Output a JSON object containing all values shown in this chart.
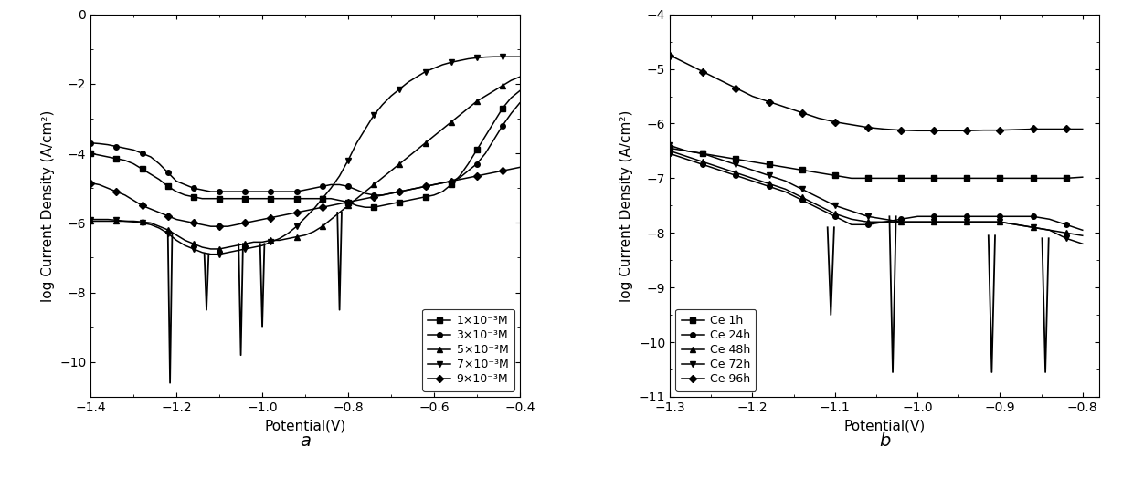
{
  "fig_width": 12.4,
  "fig_height": 5.24,
  "background_color": "#ffffff",
  "subplot_a": {
    "xlabel": "Potential(V)",
    "ylabel": "log Current Density (A/cm²)",
    "xlim": [
      -1.4,
      -0.4
    ],
    "ylim": [
      -11,
      0
    ],
    "xticks": [
      -1.4,
      -1.2,
      -1.0,
      -0.8,
      -0.6,
      -0.4
    ],
    "yticks": [
      0,
      -2,
      -4,
      -6,
      -8,
      -10
    ],
    "label": "a",
    "legend_labels": [
      "1×10⁻³M",
      "3×10⁻³M",
      "5×10⁻³M",
      "7×10⁻³M",
      "9×10⁻³M"
    ],
    "markers": [
      "s",
      "o",
      "^",
      "v",
      "D"
    ],
    "spikes_a": [
      {
        "x": -1.215,
        "ytop": -6.3,
        "ybot": -10.6
      },
      {
        "x": -1.13,
        "ytop": -6.9,
        "ybot": -8.5
      },
      {
        "x": -1.05,
        "ytop": -6.6,
        "ybot": -9.8
      },
      {
        "x": -1.0,
        "ytop": -6.6,
        "ybot": -9.0
      },
      {
        "x": -0.82,
        "ytop": -5.7,
        "ybot": -8.5
      }
    ],
    "series": [
      {
        "label": "1×10⁻³M",
        "marker": "s",
        "x": [
          -1.4,
          -1.38,
          -1.36,
          -1.34,
          -1.32,
          -1.3,
          -1.28,
          -1.26,
          -1.24,
          -1.22,
          -1.2,
          -1.18,
          -1.16,
          -1.14,
          -1.12,
          -1.1,
          -1.08,
          -1.06,
          -1.04,
          -1.02,
          -1.0,
          -0.98,
          -0.96,
          -0.94,
          -0.92,
          -0.9,
          -0.88,
          -0.86,
          -0.84,
          -0.82,
          -0.8,
          -0.78,
          -0.76,
          -0.74,
          -0.72,
          -0.7,
          -0.68,
          -0.66,
          -0.64,
          -0.62,
          -0.6,
          -0.58,
          -0.56,
          -0.54,
          -0.52,
          -0.5,
          -0.48,
          -0.46,
          -0.44,
          -0.42,
          -0.4
        ],
        "y": [
          -4.0,
          -4.05,
          -4.1,
          -4.15,
          -4.2,
          -4.3,
          -4.45,
          -4.6,
          -4.75,
          -4.95,
          -5.1,
          -5.2,
          -5.25,
          -5.3,
          -5.3,
          -5.3,
          -5.3,
          -5.3,
          -5.3,
          -5.3,
          -5.3,
          -5.3,
          -5.3,
          -5.3,
          -5.3,
          -5.3,
          -5.3,
          -5.3,
          -5.3,
          -5.35,
          -5.4,
          -5.5,
          -5.55,
          -5.55,
          -5.5,
          -5.45,
          -5.4,
          -5.35,
          -5.3,
          -5.25,
          -5.2,
          -5.1,
          -4.9,
          -4.65,
          -4.3,
          -3.9,
          -3.5,
          -3.1,
          -2.7,
          -2.4,
          -2.2
        ]
      },
      {
        "label": "3×10⁻³M",
        "marker": "o",
        "x": [
          -1.4,
          -1.38,
          -1.36,
          -1.34,
          -1.32,
          -1.3,
          -1.28,
          -1.26,
          -1.24,
          -1.22,
          -1.2,
          -1.18,
          -1.16,
          -1.14,
          -1.12,
          -1.1,
          -1.08,
          -1.06,
          -1.04,
          -1.02,
          -1.0,
          -0.98,
          -0.96,
          -0.94,
          -0.92,
          -0.9,
          -0.88,
          -0.86,
          -0.84,
          -0.82,
          -0.8,
          -0.78,
          -0.76,
          -0.74,
          -0.72,
          -0.7,
          -0.68,
          -0.66,
          -0.64,
          -0.62,
          -0.6,
          -0.58,
          -0.56,
          -0.54,
          -0.52,
          -0.5,
          -0.48,
          -0.46,
          -0.44,
          -0.42,
          -0.4
        ],
        "y": [
          -3.7,
          -3.72,
          -3.75,
          -3.8,
          -3.85,
          -3.9,
          -4.0,
          -4.1,
          -4.3,
          -4.55,
          -4.8,
          -4.9,
          -5.0,
          -5.05,
          -5.1,
          -5.1,
          -5.1,
          -5.1,
          -5.1,
          -5.1,
          -5.1,
          -5.1,
          -5.1,
          -5.1,
          -5.1,
          -5.05,
          -5.0,
          -4.95,
          -4.9,
          -4.9,
          -4.95,
          -5.05,
          -5.15,
          -5.2,
          -5.2,
          -5.15,
          -5.1,
          -5.05,
          -5.0,
          -4.95,
          -4.9,
          -4.85,
          -4.8,
          -4.7,
          -4.5,
          -4.3,
          -4.0,
          -3.6,
          -3.2,
          -2.85,
          -2.55
        ]
      },
      {
        "label": "5×10⁻³M",
        "marker": "^",
        "x": [
          -1.4,
          -1.38,
          -1.36,
          -1.34,
          -1.32,
          -1.3,
          -1.28,
          -1.26,
          -1.24,
          -1.22,
          -1.2,
          -1.18,
          -1.16,
          -1.14,
          -1.12,
          -1.1,
          -1.08,
          -1.06,
          -1.04,
          -1.02,
          -1.0,
          -0.98,
          -0.96,
          -0.94,
          -0.92,
          -0.9,
          -0.88,
          -0.86,
          -0.84,
          -0.82,
          -0.8,
          -0.78,
          -0.76,
          -0.74,
          -0.72,
          -0.7,
          -0.68,
          -0.66,
          -0.64,
          -0.62,
          -0.6,
          -0.58,
          -0.56,
          -0.54,
          -0.52,
          -0.5,
          -0.48,
          -0.46,
          -0.44,
          -0.42,
          -0.4
        ],
        "y": [
          -5.95,
          -5.95,
          -5.95,
          -5.95,
          -5.95,
          -5.95,
          -5.97,
          -6.0,
          -6.1,
          -6.2,
          -6.35,
          -6.5,
          -6.6,
          -6.7,
          -6.75,
          -6.75,
          -6.7,
          -6.65,
          -6.6,
          -6.55,
          -6.55,
          -6.5,
          -6.5,
          -6.45,
          -6.4,
          -6.35,
          -6.25,
          -6.1,
          -5.9,
          -5.7,
          -5.5,
          -5.3,
          -5.1,
          -4.9,
          -4.7,
          -4.5,
          -4.3,
          -4.1,
          -3.9,
          -3.7,
          -3.5,
          -3.3,
          -3.1,
          -2.9,
          -2.7,
          -2.5,
          -2.35,
          -2.2,
          -2.05,
          -1.9,
          -1.8
        ]
      },
      {
        "label": "7×10⁻³M",
        "marker": "v",
        "x": [
          -1.4,
          -1.38,
          -1.36,
          -1.34,
          -1.32,
          -1.3,
          -1.28,
          -1.26,
          -1.24,
          -1.22,
          -1.2,
          -1.18,
          -1.16,
          -1.14,
          -1.12,
          -1.1,
          -1.08,
          -1.06,
          -1.04,
          -1.02,
          -1.0,
          -0.98,
          -0.96,
          -0.94,
          -0.92,
          -0.9,
          -0.88,
          -0.86,
          -0.84,
          -0.82,
          -0.8,
          -0.78,
          -0.76,
          -0.74,
          -0.72,
          -0.7,
          -0.68,
          -0.66,
          -0.64,
          -0.62,
          -0.6,
          -0.58,
          -0.56,
          -0.54,
          -0.52,
          -0.5,
          -0.48,
          -0.46,
          -0.44,
          -0.42,
          -0.4
        ],
        "y": [
          -5.9,
          -5.9,
          -5.9,
          -5.92,
          -5.95,
          -5.97,
          -6.0,
          -6.05,
          -6.15,
          -6.3,
          -6.5,
          -6.65,
          -6.75,
          -6.85,
          -6.9,
          -6.9,
          -6.85,
          -6.8,
          -6.75,
          -6.7,
          -6.65,
          -6.55,
          -6.45,
          -6.3,
          -6.1,
          -5.85,
          -5.6,
          -5.3,
          -5.0,
          -4.65,
          -4.2,
          -3.7,
          -3.3,
          -2.9,
          -2.6,
          -2.35,
          -2.15,
          -1.95,
          -1.8,
          -1.65,
          -1.55,
          -1.45,
          -1.38,
          -1.33,
          -1.28,
          -1.25,
          -1.23,
          -1.22,
          -1.22,
          -1.22,
          -1.22
        ]
      },
      {
        "label": "9×10⁻³M",
        "marker": "D",
        "x": [
          -1.4,
          -1.38,
          -1.36,
          -1.34,
          -1.32,
          -1.3,
          -1.28,
          -1.26,
          -1.24,
          -1.22,
          -1.2,
          -1.18,
          -1.16,
          -1.14,
          -1.12,
          -1.1,
          -1.08,
          -1.06,
          -1.04,
          -1.02,
          -1.0,
          -0.98,
          -0.96,
          -0.94,
          -0.92,
          -0.9,
          -0.88,
          -0.86,
          -0.84,
          -0.82,
          -0.8,
          -0.78,
          -0.76,
          -0.74,
          -0.72,
          -0.7,
          -0.68,
          -0.66,
          -0.64,
          -0.62,
          -0.6,
          -0.58,
          -0.56,
          -0.54,
          -0.52,
          -0.5,
          -0.48,
          -0.46,
          -0.44,
          -0.42,
          -0.4
        ],
        "y": [
          -4.85,
          -4.9,
          -5.0,
          -5.1,
          -5.2,
          -5.35,
          -5.5,
          -5.6,
          -5.7,
          -5.8,
          -5.9,
          -5.95,
          -6.0,
          -6.05,
          -6.1,
          -6.1,
          -6.1,
          -6.05,
          -6.0,
          -5.95,
          -5.9,
          -5.85,
          -5.8,
          -5.75,
          -5.7,
          -5.65,
          -5.6,
          -5.55,
          -5.5,
          -5.45,
          -5.4,
          -5.35,
          -5.3,
          -5.25,
          -5.2,
          -5.15,
          -5.1,
          -5.05,
          -5.0,
          -4.95,
          -4.9,
          -4.85,
          -4.8,
          -4.75,
          -4.7,
          -4.65,
          -4.6,
          -4.55,
          -4.5,
          -4.45,
          -4.4
        ]
      }
    ]
  },
  "subplot_b": {
    "xlabel": "Potential(V)",
    "ylabel": "log Current Density (A/cm²)",
    "xlim": [
      -1.3,
      -0.78
    ],
    "ylim": [
      -11,
      -4
    ],
    "xticks": [
      -1.3,
      -1.2,
      -1.1,
      -1.0,
      -0.9,
      -0.8
    ],
    "yticks": [
      -4,
      -5,
      -6,
      -7,
      -8,
      -9,
      -10,
      -11
    ],
    "label": "b",
    "legend_labels": [
      "Ce 1h",
      "Ce 24h",
      "Ce 48h",
      "Ce 72h",
      "Ce 96h"
    ],
    "markers": [
      "s",
      "o",
      "^",
      "v",
      "D"
    ],
    "spikes_b": [
      {
        "x": -1.105,
        "ytop": -7.9,
        "ybot": -9.5
      },
      {
        "x": -1.03,
        "ytop": -7.7,
        "ybot": -10.55
      },
      {
        "x": -0.91,
        "ytop": -8.05,
        "ybot": -10.55
      },
      {
        "x": -0.845,
        "ytop": -8.1,
        "ybot": -10.55
      }
    ],
    "series": [
      {
        "label": "Ce 1h",
        "marker": "s",
        "x": [
          -1.3,
          -1.28,
          -1.26,
          -1.24,
          -1.22,
          -1.2,
          -1.18,
          -1.16,
          -1.14,
          -1.12,
          -1.1,
          -1.08,
          -1.06,
          -1.04,
          -1.02,
          -1.0,
          -0.98,
          -0.96,
          -0.94,
          -0.92,
          -0.9,
          -0.88,
          -0.86,
          -0.84,
          -0.82,
          -0.8
        ],
        "y": [
          -6.45,
          -6.5,
          -6.55,
          -6.6,
          -6.65,
          -6.7,
          -6.75,
          -6.8,
          -6.85,
          -6.9,
          -6.95,
          -7.0,
          -7.0,
          -7.0,
          -7.0,
          -7.0,
          -7.0,
          -7.0,
          -7.0,
          -7.0,
          -7.0,
          -7.0,
          -7.0,
          -7.0,
          -7.0,
          -6.98
        ]
      },
      {
        "label": "Ce 24h",
        "marker": "o",
        "x": [
          -1.3,
          -1.28,
          -1.26,
          -1.24,
          -1.22,
          -1.2,
          -1.18,
          -1.16,
          -1.14,
          -1.12,
          -1.1,
          -1.08,
          -1.06,
          -1.04,
          -1.02,
          -1.0,
          -0.98,
          -0.96,
          -0.94,
          -0.92,
          -0.9,
          -0.88,
          -0.86,
          -0.84,
          -0.82,
          -0.8
        ],
        "y": [
          -6.55,
          -6.65,
          -6.75,
          -6.85,
          -6.95,
          -7.05,
          -7.15,
          -7.25,
          -7.4,
          -7.55,
          -7.7,
          -7.85,
          -7.85,
          -7.8,
          -7.75,
          -7.7,
          -7.7,
          -7.7,
          -7.7,
          -7.7,
          -7.7,
          -7.7,
          -7.7,
          -7.75,
          -7.85,
          -7.95
        ]
      },
      {
        "label": "Ce 48h",
        "marker": "^",
        "x": [
          -1.3,
          -1.28,
          -1.26,
          -1.24,
          -1.22,
          -1.2,
          -1.18,
          -1.16,
          -1.14,
          -1.12,
          -1.1,
          -1.08,
          -1.06,
          -1.04,
          -1.02,
          -1.0,
          -0.98,
          -0.96,
          -0.94,
          -0.92,
          -0.9,
          -0.88,
          -0.86,
          -0.84,
          -0.82,
          -0.8
        ],
        "y": [
          -6.5,
          -6.6,
          -6.7,
          -6.8,
          -6.9,
          -7.0,
          -7.1,
          -7.2,
          -7.35,
          -7.5,
          -7.65,
          -7.75,
          -7.8,
          -7.8,
          -7.8,
          -7.8,
          -7.8,
          -7.8,
          -7.8,
          -7.8,
          -7.8,
          -7.85,
          -7.9,
          -7.95,
          -8.0,
          -8.05
        ]
      },
      {
        "label": "Ce 72h",
        "marker": "v",
        "x": [
          -1.3,
          -1.28,
          -1.26,
          -1.24,
          -1.22,
          -1.2,
          -1.18,
          -1.16,
          -1.14,
          -1.12,
          -1.1,
          -1.08,
          -1.06,
          -1.04,
          -1.02,
          -1.0,
          -0.98,
          -0.96,
          -0.94,
          -0.92,
          -0.9,
          -0.88,
          -0.86,
          -0.84,
          -0.82,
          -0.8
        ],
        "y": [
          -6.4,
          -6.5,
          -6.55,
          -6.65,
          -6.75,
          -6.85,
          -6.95,
          -7.05,
          -7.2,
          -7.35,
          -7.5,
          -7.6,
          -7.7,
          -7.75,
          -7.8,
          -7.8,
          -7.8,
          -7.8,
          -7.8,
          -7.8,
          -7.8,
          -7.85,
          -7.9,
          -7.95,
          -8.1,
          -8.2
        ]
      },
      {
        "label": "Ce 96h",
        "marker": "D",
        "x": [
          -1.3,
          -1.28,
          -1.26,
          -1.24,
          -1.22,
          -1.2,
          -1.18,
          -1.16,
          -1.14,
          -1.12,
          -1.1,
          -1.08,
          -1.06,
          -1.04,
          -1.02,
          -1.0,
          -0.98,
          -0.96,
          -0.94,
          -0.92,
          -0.9,
          -0.88,
          -0.86,
          -0.84,
          -0.82,
          -0.8
        ],
        "y": [
          -4.75,
          -4.9,
          -5.05,
          -5.2,
          -5.35,
          -5.5,
          -5.6,
          -5.7,
          -5.8,
          -5.9,
          -5.97,
          -6.02,
          -6.07,
          -6.1,
          -6.12,
          -6.13,
          -6.13,
          -6.13,
          -6.13,
          -6.12,
          -6.12,
          -6.11,
          -6.1,
          -6.1,
          -6.1,
          -6.1
        ]
      }
    ]
  }
}
